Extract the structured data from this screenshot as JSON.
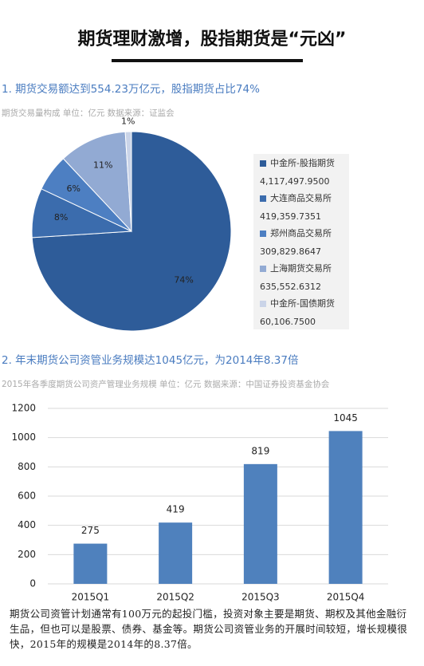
{
  "header": {
    "title": "期货理财激增，股指期货是“元凶”"
  },
  "chart_data": [
    {
      "type": "pie",
      "title": "1. 期货交易额达到554.23万亿元，股指期货占比74%",
      "subtitle": "期货交易量构成 单位：亿元 数据来源：证监会",
      "categories": [
        "中金所-股指期货",
        "大连商品交易所",
        "郑州商品交易所",
        "上海期货交易所",
        "中金所-国债期货"
      ],
      "values": [
        74,
        8,
        6,
        11,
        1
      ],
      "value_labels": [
        "74%",
        "8%",
        "6%",
        "11%",
        "1%"
      ],
      "colors": [
        "#2e5c99",
        "#3b6cad",
        "#4d7fc2",
        "#92aad3",
        "#cad4e8"
      ],
      "amounts": [
        4117497.95,
        419359.7351,
        309829.8647,
        635552.6312,
        60106.75
      ],
      "amount_labels": [
        "4,117,497.9500",
        "419,359.7351",
        "309,829.8647",
        "635,552.6312",
        "60,106.7500"
      ]
    },
    {
      "type": "bar",
      "title": "2. 年末期货公司资管业务规模达1045亿元，为2014年8.37倍",
      "subtitle": "2015年各季度期货公司资产管理业务规模 单位：亿元 数据来源：中国证券投资基金协会",
      "categories": [
        "2015Q1",
        "2015Q2",
        "2015Q3",
        "2015Q4"
      ],
      "values": [
        275,
        419,
        819,
        1045
      ],
      "color": "#4f81bd",
      "ylim": [
        0,
        1200
      ],
      "yticks": [
        0,
        200,
        400,
        600,
        800,
        1000,
        1200
      ],
      "grid": true
    }
  ],
  "footer": {
    "text": "期货公司资管计划通常有100万元的起投门槛，投资对象主要是期货、期权及其他金融衍生品，但也可以是股票、债券、基金等。期货公司资管业务的开展时间较短，增长规模很快，2015年的规模是2014年的8.37倍。"
  }
}
